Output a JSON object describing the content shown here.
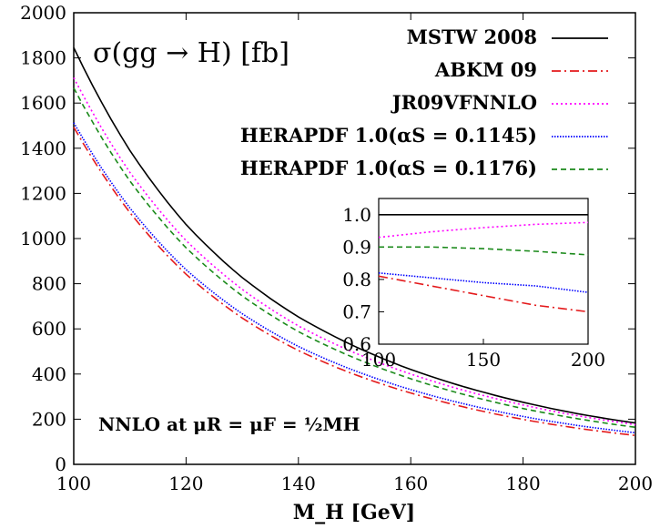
{
  "chart_data": {
    "type": "line",
    "title": "σ(gg → H) [fb]",
    "xlabel": "M_H [GeV]",
    "ylabel": "",
    "xlim": [
      100,
      200
    ],
    "ylim": [
      0,
      2000
    ],
    "x_ticks": [
      100,
      120,
      140,
      160,
      180,
      200
    ],
    "y_ticks": [
      0,
      200,
      400,
      600,
      800,
      1000,
      1200,
      1400,
      1600,
      1800,
      2000
    ],
    "legend_position": "top-right",
    "annotation": "NNLO at μR = μF = ½MH",
    "x": [
      100,
      110,
      120,
      130,
      140,
      150,
      160,
      170,
      180,
      190,
      200
    ],
    "series": [
      {
        "name": "MSTW 2008",
        "color": "#000000",
        "dash": "solid",
        "values": [
          1845,
          1390,
          1062,
          827,
          653,
          523,
          420,
          340,
          275,
          223,
          183
        ]
      },
      {
        "name": "ABKM 09",
        "color": "#e41a1c",
        "dash": "dashdot",
        "values": [
          1493,
          1115,
          842,
          648,
          504,
          398,
          316,
          251,
          199,
          159,
          128
        ]
      },
      {
        "name": "JR09VFNNLO",
        "color": "#ff00ff",
        "dash": "dotted",
        "values": [
          1712,
          1293,
          991,
          775,
          613,
          494,
          400,
          324,
          263,
          214,
          176
        ]
      },
      {
        "name": "HERAPDF 1.0(αS = 0.1145)",
        "color": "#0000ff",
        "dash": "fine",
        "values": [
          1513,
          1135,
          862,
          667,
          522,
          415,
          331,
          265,
          212,
          171,
          140
        ]
      },
      {
        "name": "HERAPDF 1.0(αS = 0.1176)",
        "color": "#1b8a1b",
        "dash": "dashed",
        "values": [
          1667,
          1255,
          959,
          746,
          588,
          471,
          379,
          306,
          247,
          201,
          164
        ]
      }
    ],
    "inset": {
      "xlim": [
        100,
        200
      ],
      "ylim": [
        0.6,
        1.05
      ],
      "x_ticks": [
        100,
        150,
        200
      ],
      "y_ticks": [
        0.6,
        0.7,
        0.8,
        0.9,
        1.0
      ],
      "x": [
        100,
        125,
        150,
        175,
        200
      ],
      "series": [
        {
          "name": "MSTW 2008",
          "values": [
            1.0,
            1.0,
            1.0,
            1.0,
            1.0
          ]
        },
        {
          "name": "ABKM 09",
          "values": [
            0.81,
            0.78,
            0.75,
            0.72,
            0.7
          ]
        },
        {
          "name": "JR09VFNNLO",
          "values": [
            0.93,
            0.947,
            0.96,
            0.97,
            0.976
          ]
        },
        {
          "name": "HERAPDF 1.0(αS = 0.1145)",
          "values": [
            0.82,
            0.805,
            0.79,
            0.78,
            0.76
          ]
        },
        {
          "name": "HERAPDF 1.0(αS = 0.1176)",
          "values": [
            0.9,
            0.9,
            0.895,
            0.887,
            0.876
          ]
        }
      ]
    }
  }
}
